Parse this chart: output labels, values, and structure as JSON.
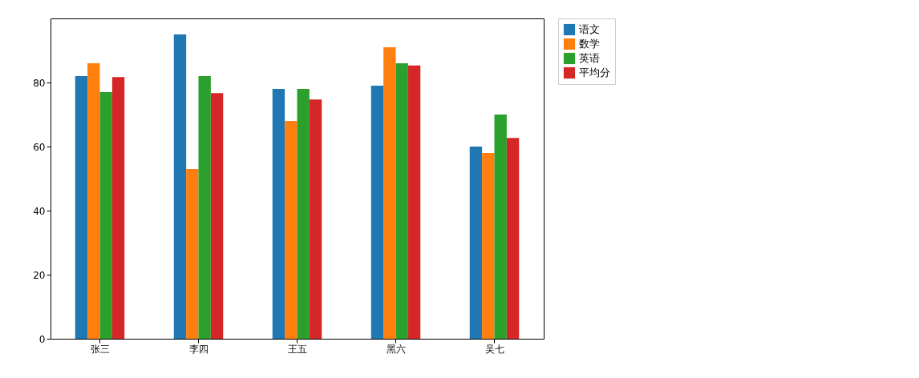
{
  "chart_data": {
    "type": "bar",
    "categories": [
      "张三",
      "李四",
      "王五",
      "黑六",
      "吴七"
    ],
    "series": [
      {
        "name": "语文",
        "color": "#1f77b4",
        "values": [
          82,
          95,
          78,
          79,
          60
        ]
      },
      {
        "name": "数学",
        "color": "#ff7f0e",
        "values": [
          86,
          53,
          68,
          91,
          58
        ]
      },
      {
        "name": "英语",
        "color": "#2ca02c",
        "values": [
          77,
          82,
          78,
          86,
          70
        ]
      },
      {
        "name": "平均分",
        "color": "#d62728",
        "values": [
          81.7,
          76.7,
          74.7,
          85.3,
          62.7
        ]
      }
    ],
    "ylim": [
      0,
      100
    ],
    "yticks": [
      0,
      20,
      40,
      60,
      80
    ],
    "grid": false,
    "legend": "right"
  }
}
